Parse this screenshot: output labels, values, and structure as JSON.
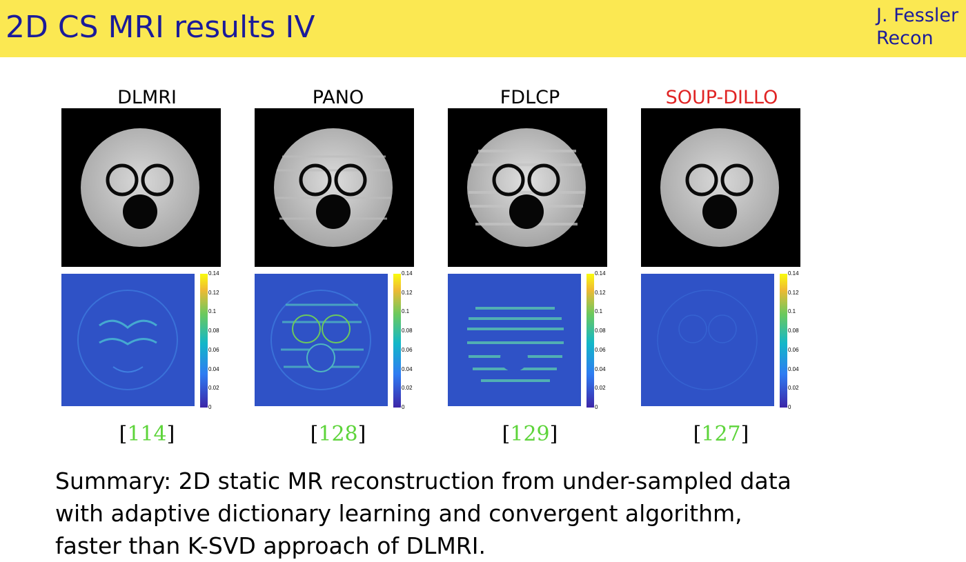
{
  "header": {
    "title": "2D CS MRI results IV",
    "author": "J. Fessler",
    "section": "Recon"
  },
  "columns": [
    {
      "label": "DLMRI",
      "citation": "114",
      "highlight": false
    },
    {
      "label": "PANO",
      "citation": "128",
      "highlight": false
    },
    {
      "label": "FDLCP",
      "citation": "129",
      "highlight": false
    },
    {
      "label": "SOUP-DILLO",
      "citation": "127",
      "highlight": true
    }
  ],
  "colorbar": {
    "ticks": [
      "0.14",
      "0.12",
      "0.1",
      "0.08",
      "0.06",
      "0.04",
      "0.02",
      "0"
    ]
  },
  "summary": {
    "line1": "Summary: 2D static MR reconstruction from under-sampled data",
    "line2": "with adaptive dictionary learning and convergent algorithm,",
    "line3": "faster than K-SVD approach of DLMRI."
  },
  "colors": {
    "header_bg": "#fbe852",
    "title": "#1b1b9a",
    "highlight": "#e02424",
    "citation": "#5dd43a"
  }
}
